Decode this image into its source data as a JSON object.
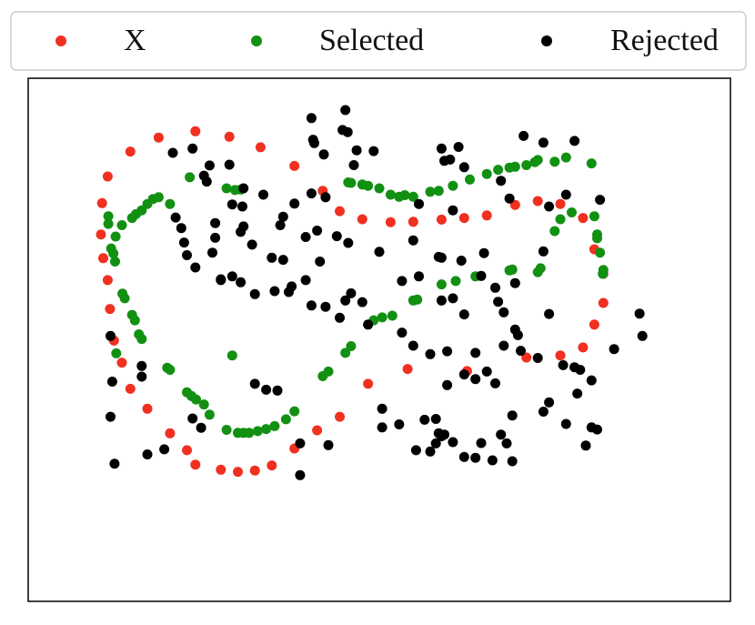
{
  "chart_data": {
    "type": "scatter",
    "title": "",
    "xlabel": "",
    "ylabel": "",
    "xlim": [
      0,
      100
    ],
    "ylim": [
      0,
      100
    ],
    "axes_ticks": false,
    "grid": false,
    "legend": {
      "placement": "top",
      "columns": 3,
      "framed": true
    },
    "series": [
      {
        "name": "X",
        "color": "#f03020",
        "points": [
          [
            0.8,
            74.9
          ],
          [
            1.2,
            69.3
          ],
          [
            2.0,
            64.1
          ],
          [
            2.4,
            57.3
          ],
          [
            3.1,
            49.8
          ],
          [
            4.5,
            44.6
          ],
          [
            6.0,
            38.4
          ],
          [
            9.0,
            33.7
          ],
          [
            13.0,
            27.9
          ],
          [
            16.0,
            23.9
          ],
          [
            17.5,
            20.5
          ],
          [
            22.0,
            19.3
          ],
          [
            25.0,
            18.8
          ],
          [
            28.0,
            19.1
          ],
          [
            31.0,
            20.3
          ],
          [
            35.0,
            24.3
          ],
          [
            39.0,
            28.6
          ],
          [
            43.0,
            31.8
          ],
          [
            48.0,
            39.6
          ],
          [
            55.0,
            43.1
          ],
          [
            65.5,
            42.6
          ],
          [
            76.0,
            45.8
          ],
          [
            82.0,
            46.3
          ],
          [
            86.0,
            48.2
          ],
          [
            88.0,
            53.6
          ],
          [
            89.6,
            58.7
          ],
          [
            89.6,
            65.6
          ],
          [
            88.0,
            71.4
          ],
          [
            86.0,
            78.8
          ],
          [
            82.0,
            82.1
          ],
          [
            78.0,
            82.8
          ],
          [
            74.0,
            81.9
          ],
          [
            69.0,
            79.4
          ],
          [
            65.0,
            78.8
          ],
          [
            61.0,
            78.4
          ],
          [
            56.0,
            77.9
          ],
          [
            52.0,
            77.8
          ],
          [
            47.0,
            78.5
          ],
          [
            43.0,
            80.4
          ],
          [
            40.0,
            85.2
          ],
          [
            35.0,
            91.1
          ],
          [
            29.0,
            95.5
          ],
          [
            23.5,
            98.0
          ],
          [
            17.5,
            99.3
          ],
          [
            11.0,
            97.8
          ],
          [
            6.0,
            94.5
          ],
          [
            2.0,
            88.6
          ],
          [
            1.0,
            82.3
          ]
        ]
      },
      {
        "name": "Selected",
        "color": "#129012",
        "points": [
          [
            2.1,
            79.2
          ],
          [
            2.1,
            77.4
          ],
          [
            3.0,
            70.4
          ],
          [
            3.3,
            68.5
          ],
          [
            4.6,
            60.9
          ],
          [
            5.0,
            59.8
          ],
          [
            6.3,
            55.9
          ],
          [
            6.8,
            54.6
          ],
          [
            7.5,
            51.3
          ],
          [
            8.0,
            50.2
          ],
          [
            12.5,
            43.4
          ],
          [
            13.0,
            42.9
          ],
          [
            16.0,
            37.6
          ],
          [
            16.8,
            36.7
          ],
          [
            17.6,
            35.9
          ],
          [
            19.0,
            34.7
          ],
          [
            20.0,
            32.3
          ],
          [
            23.0,
            28.7
          ],
          [
            25.0,
            28.0
          ],
          [
            26.0,
            28.0
          ],
          [
            27.0,
            28.0
          ],
          [
            28.5,
            28.4
          ],
          [
            30.0,
            28.9
          ],
          [
            31.5,
            29.6
          ],
          [
            33.5,
            31.2
          ],
          [
            35.0,
            33.1
          ],
          [
            40.0,
            41.4
          ],
          [
            41.0,
            42.5
          ],
          [
            44.0,
            46.9
          ],
          [
            45.0,
            48.5
          ],
          [
            49.0,
            54.6
          ],
          [
            50.5,
            55.3
          ],
          [
            52.3,
            55.7
          ],
          [
            56.0,
            59.3
          ],
          [
            56.7,
            59.5
          ],
          [
            61.0,
            63.1
          ],
          [
            63.5,
            63.9
          ],
          [
            67.0,
            65.0
          ],
          [
            73.0,
            66.4
          ],
          [
            73.5,
            66.6
          ],
          [
            78.0,
            66.0
          ],
          [
            78.5,
            66.9
          ],
          [
            81.0,
            75.7
          ],
          [
            82.0,
            78.5
          ],
          [
            84.0,
            80.1
          ],
          [
            88.0,
            79.2
          ],
          [
            88.5,
            74.9
          ],
          [
            88.5,
            74.0
          ],
          [
            89.0,
            70.6
          ],
          [
            89.6,
            66.5
          ],
          [
            89.5,
            65.6
          ],
          [
            87.5,
            91.7
          ],
          [
            83.0,
            93.1
          ],
          [
            81.0,
            92.1
          ],
          [
            78.0,
            92.5
          ],
          [
            77.5,
            92.0
          ],
          [
            76.0,
            91.3
          ],
          [
            74.0,
            90.9
          ],
          [
            73.0,
            90.7
          ],
          [
            71.0,
            90.2
          ],
          [
            69.0,
            89.2
          ],
          [
            66.0,
            87.9
          ],
          [
            63.0,
            86.4
          ],
          [
            60.5,
            85.2
          ],
          [
            59.0,
            85.0
          ],
          [
            56.0,
            83.8
          ],
          [
            54.5,
            84.2
          ],
          [
            53.5,
            83.8
          ],
          [
            52.0,
            84.3
          ],
          [
            50.0,
            85.8
          ],
          [
            48.0,
            86.4
          ],
          [
            47.0,
            86.7
          ],
          [
            45.0,
            87.1
          ],
          [
            44.5,
            87.2
          ],
          [
            16.5,
            88.4
          ],
          [
            13.0,
            82.1
          ],
          [
            11.0,
            83.7
          ],
          [
            10.0,
            83.3
          ],
          [
            9.0,
            82.1
          ],
          [
            8.0,
            80.6
          ],
          [
            7.0,
            79.7
          ],
          [
            6.3,
            78.8
          ],
          [
            4.5,
            77.1
          ],
          [
            3.4,
            74.4
          ],
          [
            2.6,
            71.6
          ],
          [
            23.0,
            85.8
          ],
          [
            24.5,
            85.4
          ],
          [
            25.5,
            85.5
          ],
          [
            3.5,
            46.8
          ],
          [
            24.0,
            46.3
          ]
        ]
      },
      {
        "name": "Rejected",
        "color": "#000000",
        "points": [
          [
            44.0,
            104.3
          ],
          [
            43.5,
            99.6
          ],
          [
            44.4,
            99.1
          ],
          [
            38.0,
            102.4
          ],
          [
            38.3,
            97.3
          ],
          [
            38.5,
            96.5
          ],
          [
            40.2,
            93.8
          ],
          [
            46.0,
            94.8
          ],
          [
            49.0,
            94.6
          ],
          [
            45.5,
            91.3
          ],
          [
            61.0,
            95.2
          ],
          [
            64.0,
            95.6
          ],
          [
            65.0,
            90.8
          ],
          [
            61.5,
            92.3
          ],
          [
            71.5,
            87.6
          ],
          [
            73.0,
            83.4
          ],
          [
            83.0,
            84.3
          ],
          [
            89.0,
            83.1
          ],
          [
            80.0,
            81.5
          ],
          [
            75.5,
            98.2
          ],
          [
            79.0,
            96.6
          ],
          [
            84.5,
            97.0
          ],
          [
            79.0,
            70.9
          ],
          [
            37.0,
            64.1
          ],
          [
            28.0,
            60.8
          ],
          [
            31.5,
            61.5
          ],
          [
            34.0,
            61.3
          ],
          [
            38.0,
            58.1
          ],
          [
            44.0,
            59.3
          ],
          [
            47.0,
            58.9
          ],
          [
            40.5,
            57.8
          ],
          [
            43.0,
            55.2
          ],
          [
            48.0,
            53.6
          ],
          [
            54.0,
            51.7
          ],
          [
            56.0,
            48.6
          ],
          [
            59.0,
            46.6
          ],
          [
            62.0,
            47.3
          ],
          [
            67.0,
            46.9
          ],
          [
            72.0,
            48.6
          ],
          [
            74.5,
            51.1
          ],
          [
            74.0,
            52.4
          ],
          [
            67.0,
            40.7
          ],
          [
            62.0,
            39.3
          ],
          [
            65.0,
            41.8
          ],
          [
            70.5,
            39.7
          ],
          [
            69.0,
            42.5
          ],
          [
            75.0,
            47.4
          ],
          [
            78.0,
            45.7
          ],
          [
            82.5,
            44.0
          ],
          [
            85.5,
            42.9
          ],
          [
            87.5,
            40.4
          ],
          [
            91.5,
            47.8
          ],
          [
            96.5,
            50.9
          ],
          [
            96.0,
            56.2
          ],
          [
            84.5,
            43.5
          ],
          [
            80.0,
            56.1
          ],
          [
            72.0,
            56.5
          ],
          [
            70.5,
            62.3
          ],
          [
            68.0,
            65.1
          ],
          [
            64.5,
            68.7
          ],
          [
            60.5,
            69.6
          ],
          [
            61.0,
            69.4
          ],
          [
            56.0,
            73.5
          ],
          [
            50.0,
            70.8
          ],
          [
            44.5,
            72.9
          ],
          [
            42.5,
            74.5
          ],
          [
            39.0,
            75.8
          ],
          [
            37.0,
            74.3
          ],
          [
            39.5,
            68.5
          ],
          [
            33.0,
            68.9
          ],
          [
            32.5,
            77.1
          ],
          [
            31.0,
            69.4
          ],
          [
            25.5,
            75.5
          ],
          [
            27.5,
            72.5
          ],
          [
            26.0,
            76.8
          ],
          [
            21.0,
            74.1
          ],
          [
            21.0,
            77.6
          ],
          [
            20.5,
            70.6
          ],
          [
            22.0,
            64.3
          ],
          [
            24.0,
            65.0
          ],
          [
            25.5,
            63.6
          ],
          [
            17.5,
            67.1
          ],
          [
            15.5,
            73.0
          ],
          [
            14.0,
            78.9
          ],
          [
            15.0,
            76.4
          ],
          [
            16.0,
            70.0
          ],
          [
            23.5,
            91.4
          ],
          [
            20.0,
            91.2
          ],
          [
            19.0,
            88.8
          ],
          [
            19.5,
            87.4
          ],
          [
            26.0,
            85.8
          ],
          [
            24.0,
            82.0
          ],
          [
            25.8,
            81.5
          ],
          [
            29.5,
            84.3
          ],
          [
            33.0,
            79.1
          ],
          [
            35.0,
            82.2
          ],
          [
            38.0,
            84.6
          ],
          [
            40.5,
            83.7
          ],
          [
            22.0,
            64.1
          ],
          [
            34.5,
            62.6
          ],
          [
            45.0,
            61.0
          ],
          [
            54.0,
            63.9
          ],
          [
            57.0,
            65.0
          ],
          [
            61.0,
            59.3
          ],
          [
            63.0,
            59.8
          ],
          [
            65.0,
            56.0
          ],
          [
            71.0,
            59.0
          ],
          [
            74.0,
            63.4
          ],
          [
            68.5,
            70.5
          ],
          [
            63.0,
            80.6
          ],
          [
            57.0,
            82.1
          ],
          [
            62.5,
            92.6
          ],
          [
            17.0,
            95.2
          ],
          [
            13.5,
            94.2
          ],
          [
            2.5,
            50.9
          ],
          [
            2.8,
            40.1
          ],
          [
            8.0,
            43.8
          ],
          [
            8.0,
            41.3
          ],
          [
            2.5,
            31.8
          ],
          [
            3.2,
            20.7
          ],
          [
            9.0,
            22.9
          ],
          [
            12.0,
            24.1
          ],
          [
            17.0,
            31.4
          ],
          [
            18.5,
            29.2
          ],
          [
            28.0,
            39.6
          ],
          [
            30.0,
            38.2
          ],
          [
            32.0,
            38.0
          ],
          [
            36.0,
            25.5
          ],
          [
            41.0,
            25.1
          ],
          [
            36.0,
            18.0
          ],
          [
            50.5,
            33.7
          ],
          [
            53.5,
            30.0
          ],
          [
            50.5,
            29.3
          ],
          [
            58.0,
            31.1
          ],
          [
            60.0,
            31.3
          ],
          [
            61.5,
            27.6
          ],
          [
            63.0,
            25.8
          ],
          [
            68.0,
            25.6
          ],
          [
            71.5,
            27.6
          ],
          [
            72.5,
            25.5
          ],
          [
            73.5,
            32.1
          ],
          [
            79.0,
            33.0
          ],
          [
            83.0,
            30.1
          ],
          [
            80.0,
            35.2
          ],
          [
            85.0,
            37.3
          ],
          [
            87.5,
            29.3
          ],
          [
            88.5,
            28.8
          ],
          [
            86.5,
            25.0
          ],
          [
            60.5,
            27.9
          ],
          [
            61.0,
            27.2
          ],
          [
            56.5,
            23.9
          ],
          [
            59.0,
            23.6
          ],
          [
            60.0,
            25.5
          ],
          [
            65.0,
            22.3
          ],
          [
            67.0,
            22.1
          ],
          [
            70.0,
            21.5
          ],
          [
            73.5,
            21.3
          ]
        ]
      }
    ]
  }
}
